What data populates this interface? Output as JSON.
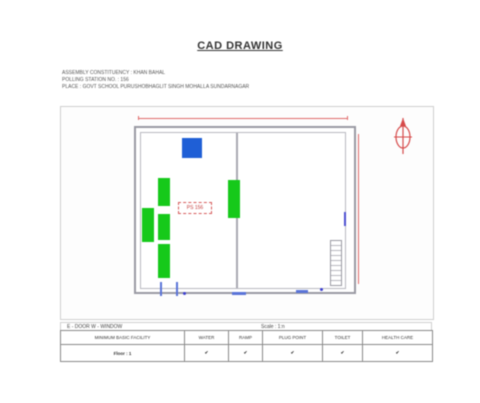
{
  "document": {
    "title": "CAD DRAWING",
    "header_lines": [
      "ASSEMBLY CONSTITUENCY : KHAN BAHAL",
      "POLLING STATION NO. : 156",
      "PLACE : GOVT SCHOOL PURUSHOBHAGLIT SINGH MOHALLA SUNDARNAGAR"
    ]
  },
  "plan": {
    "room_label": "PS 156",
    "blocks": [
      {
        "name": "block-blue-top",
        "label": "",
        "color": "#1f5fd6"
      },
      {
        "name": "block-green-1",
        "label": "",
        "color": "#16c91a"
      },
      {
        "name": "block-green-2",
        "label": "",
        "color": "#16c91a"
      },
      {
        "name": "block-green-3",
        "label": "",
        "color": "#16c91a"
      },
      {
        "name": "block-green-4",
        "label": "",
        "color": "#16c91a"
      },
      {
        "name": "block-green-5",
        "label": "",
        "color": "#16c91a"
      }
    ]
  },
  "info": {
    "left": "E - DOOR    W - WINDOW",
    "right": "Scale : 1:n"
  },
  "facility_table": {
    "headers": [
      "MINIMUM BASIC FACILITY",
      "WATER",
      "RAMP",
      "PLUG POINT",
      "TOILET",
      "HEALTH CARE"
    ],
    "row_label": "Floor : 1",
    "ticks": [
      "✔",
      "✔",
      "✔",
      "✔",
      "✔"
    ]
  },
  "colors": {
    "dimension": "#e06a6a",
    "wall": "#9a9aa3",
    "tick": "#e02020"
  }
}
